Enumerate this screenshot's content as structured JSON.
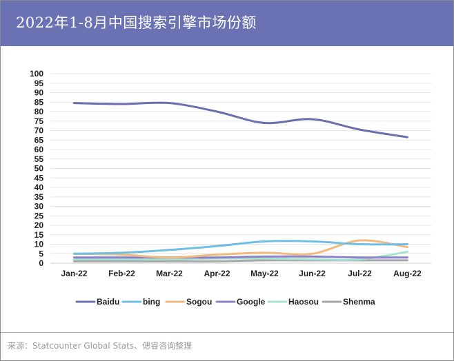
{
  "title": "2022年1-8月中国搜索引擎市场份额",
  "source": "来源：Statcounter Global Stats、偲睿咨询整理",
  "chart_data": {
    "type": "line",
    "categories": [
      "Jan-22",
      "Feb-22",
      "Mar-22",
      "Apr-22",
      "May-22",
      "Jun-22",
      "Jul-22",
      "Aug-22"
    ],
    "ylim": [
      0,
      100
    ],
    "yticks": [
      0,
      5,
      10,
      15,
      20,
      25,
      30,
      35,
      40,
      45,
      50,
      55,
      60,
      65,
      70,
      75,
      80,
      85,
      90,
      95,
      100
    ],
    "grid": true,
    "legend_position": "bottom",
    "series": [
      {
        "name": "Baidu",
        "color": "#6b6fae",
        "values": [
          84.5,
          84.0,
          84.5,
          80.0,
          74.0,
          76.0,
          70.5,
          66.5
        ]
      },
      {
        "name": "bing",
        "color": "#6dbfe6",
        "values": [
          5.0,
          5.5,
          7.0,
          9.0,
          11.5,
          11.5,
          10.0,
          10.0
        ]
      },
      {
        "name": "Sogou",
        "color": "#f2b97f",
        "values": [
          5.0,
          4.5,
          3.0,
          4.5,
          5.5,
          5.0,
          12.0,
          8.5
        ]
      },
      {
        "name": "Google",
        "color": "#8c80c7",
        "values": [
          3.0,
          3.0,
          3.0,
          3.0,
          3.5,
          3.5,
          3.0,
          3.0
        ]
      },
      {
        "name": "Haosou",
        "color": "#a6e3d3",
        "values": [
          2.0,
          2.0,
          2.0,
          2.5,
          2.5,
          2.0,
          2.0,
          6.0
        ]
      },
      {
        "name": "Shenma",
        "color": "#a6a6a6",
        "values": [
          1.0,
          1.0,
          1.0,
          1.0,
          1.5,
          1.5,
          1.5,
          1.5
        ]
      }
    ]
  }
}
